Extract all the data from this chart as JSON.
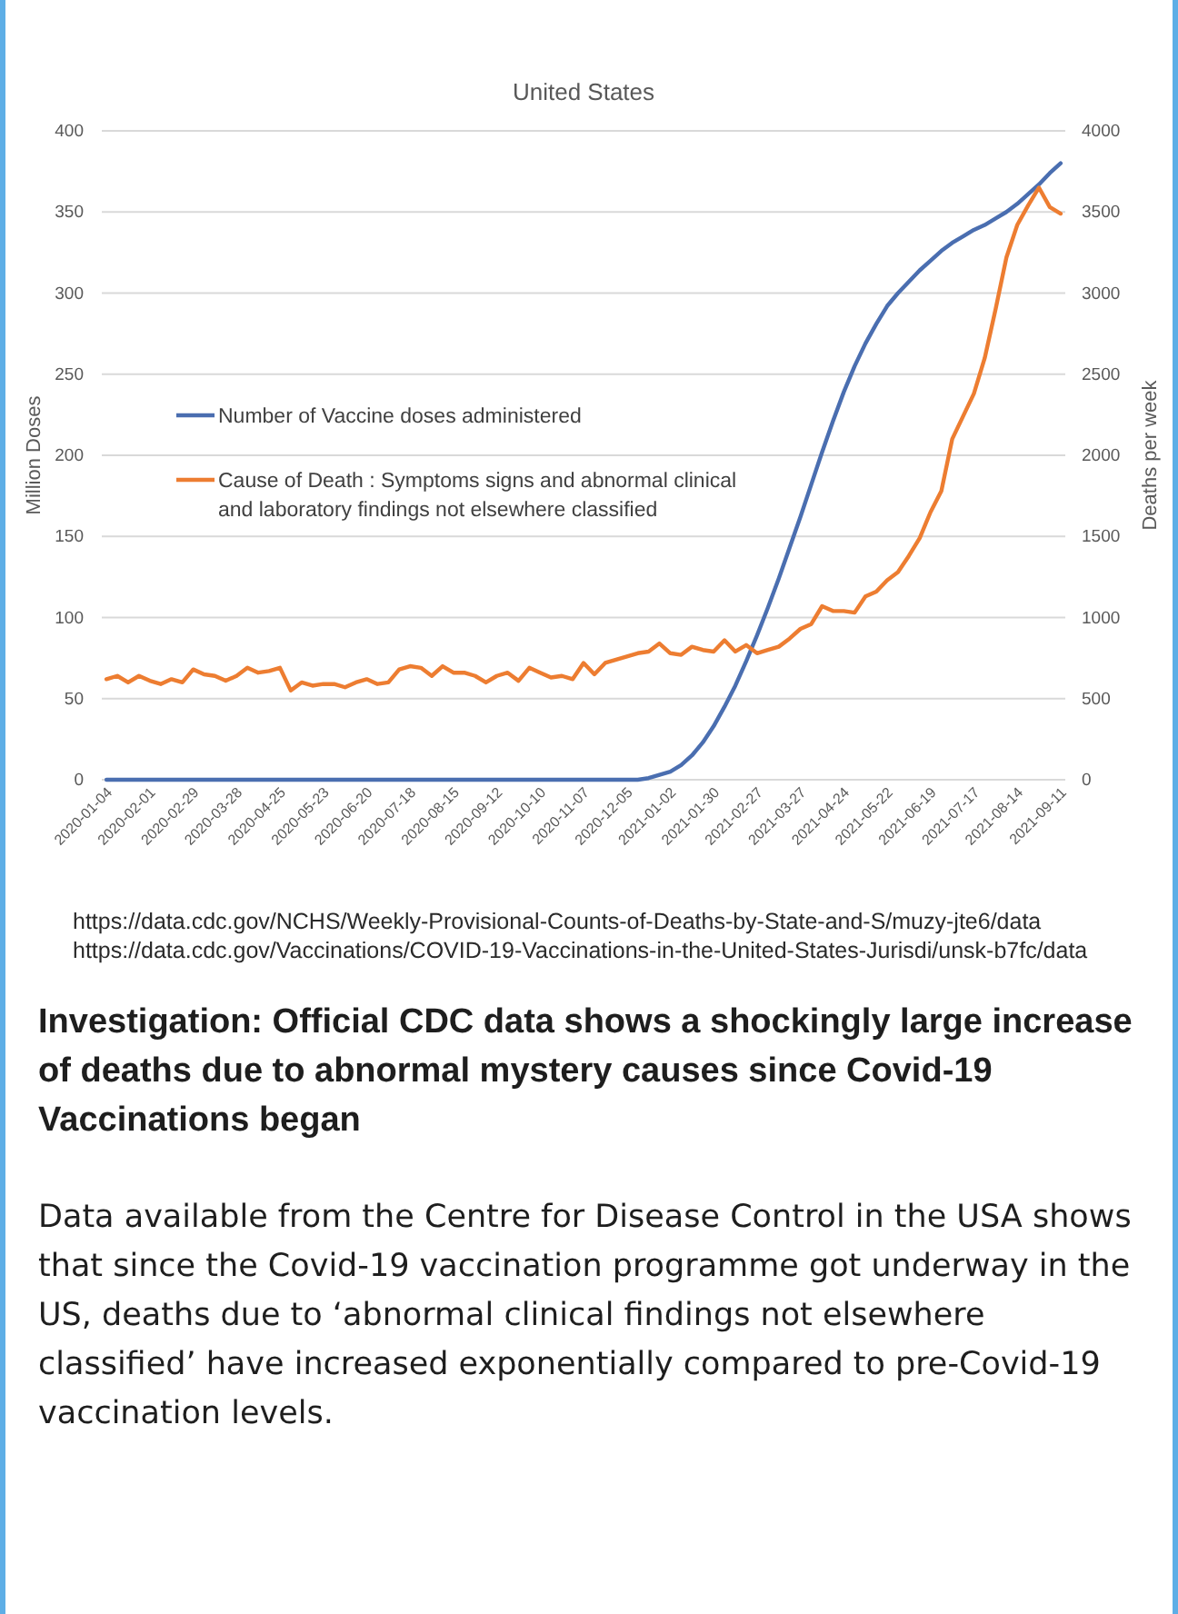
{
  "chart_data": {
    "type": "line",
    "title": "United States",
    "ylabel": "Million Doses",
    "y2label": "Deaths per week",
    "x": [
      "2020-01-04",
      "2020-01-11",
      "2020-01-18",
      "2020-01-25",
      "2020-02-01",
      "2020-02-08",
      "2020-02-15",
      "2020-02-22",
      "2020-02-29",
      "2020-03-07",
      "2020-03-14",
      "2020-03-21",
      "2020-03-28",
      "2020-04-04",
      "2020-04-11",
      "2020-04-18",
      "2020-04-25",
      "2020-05-02",
      "2020-05-09",
      "2020-05-16",
      "2020-05-23",
      "2020-05-30",
      "2020-06-06",
      "2020-06-13",
      "2020-06-20",
      "2020-06-27",
      "2020-07-04",
      "2020-07-11",
      "2020-07-18",
      "2020-07-25",
      "2020-08-01",
      "2020-08-08",
      "2020-08-15",
      "2020-08-22",
      "2020-08-29",
      "2020-09-05",
      "2020-09-12",
      "2020-09-19",
      "2020-09-26",
      "2020-10-03",
      "2020-10-10",
      "2020-10-17",
      "2020-10-24",
      "2020-10-31",
      "2020-11-07",
      "2020-11-14",
      "2020-11-21",
      "2020-11-28",
      "2020-12-05",
      "2020-12-12",
      "2020-12-19",
      "2020-12-26",
      "2021-01-02",
      "2021-01-09",
      "2021-01-16",
      "2021-01-23",
      "2021-01-30",
      "2021-02-06",
      "2021-02-13",
      "2021-02-20",
      "2021-02-27",
      "2021-03-06",
      "2021-03-13",
      "2021-03-20",
      "2021-03-27",
      "2021-04-03",
      "2021-04-10",
      "2021-04-17",
      "2021-04-24",
      "2021-05-01",
      "2021-05-08",
      "2021-05-15",
      "2021-05-22",
      "2021-05-29",
      "2021-06-05",
      "2021-06-12",
      "2021-06-19",
      "2021-06-26",
      "2021-07-03",
      "2021-07-10",
      "2021-07-17",
      "2021-07-24",
      "2021-07-31",
      "2021-08-07",
      "2021-08-14",
      "2021-08-21",
      "2021-08-28",
      "2021-09-04",
      "2021-09-11"
    ],
    "series": [
      {
        "name": "Number of Vaccine doses administered",
        "color": "#4a6eb0",
        "values": [
          0,
          0,
          0,
          0,
          0,
          0,
          0,
          0,
          0,
          0,
          0,
          0,
          0,
          0,
          0,
          0,
          0,
          0,
          0,
          0,
          0,
          0,
          0,
          0,
          0,
          0,
          0,
          0,
          0,
          0,
          0,
          0,
          0,
          0,
          0,
          0,
          0,
          0,
          0,
          0,
          0,
          0,
          0,
          0,
          0,
          0,
          0,
          0,
          0,
          0,
          1,
          3,
          5,
          9,
          15,
          23,
          33,
          45,
          58,
          73,
          89,
          106,
          124,
          143,
          162,
          182,
          202,
          221,
          239,
          255,
          269,
          281,
          292,
          300,
          307,
          314,
          320,
          326,
          331,
          335,
          339,
          342,
          346,
          350,
          355,
          361,
          367,
          374,
          380
        ]
      },
      {
        "name": "Cause of Death : Symptoms signs and abnormal clinical and laboratory findings not elsewhere classified",
        "color": "#ed7d31",
        "axis": "y2",
        "values": [
          620,
          640,
          600,
          640,
          610,
          590,
          620,
          600,
          680,
          650,
          640,
          610,
          640,
          690,
          660,
          670,
          690,
          550,
          600,
          580,
          590,
          590,
          570,
          600,
          620,
          590,
          600,
          680,
          700,
          690,
          640,
          700,
          660,
          660,
          640,
          600,
          640,
          660,
          610,
          690,
          660,
          630,
          640,
          620,
          720,
          650,
          720,
          740,
          760,
          780,
          790,
          840,
          780,
          770,
          820,
          800,
          790,
          860,
          790,
          830,
          780,
          800,
          820,
          870,
          930,
          960,
          1070,
          1040,
          1040,
          1030,
          1130,
          1160,
          1230,
          1280,
          1380,
          1490,
          1650,
          1780,
          2100,
          2240,
          2380,
          2600,
          2900,
          3220,
          3420,
          3540,
          3650,
          3530,
          3490
        ]
      }
    ],
    "xlim": [
      "2020-01-01",
      "2021-09-14"
    ],
    "xticks": [
      "2020-01-04",
      "2020-02-01",
      "2020-02-29",
      "2020-03-28",
      "2020-04-25",
      "2020-05-23",
      "2020-06-20",
      "2020-07-18",
      "2020-08-15",
      "2020-09-12",
      "2020-10-10",
      "2020-11-07",
      "2020-12-05",
      "2021-01-02",
      "2021-01-30",
      "2021-02-27",
      "2021-03-27",
      "2021-04-24",
      "2021-05-22",
      "2021-06-19",
      "2021-07-17",
      "2021-08-14",
      "2021-09-11"
    ],
    "ylim": [
      0,
      400
    ],
    "yticks": [
      0,
      50,
      100,
      150,
      200,
      250,
      300,
      350,
      400
    ],
    "y2lim": [
      0,
      4000
    ],
    "y2ticks": [
      0,
      500,
      1000,
      1500,
      2000,
      2500,
      3000,
      3500,
      4000
    ],
    "grid": "y",
    "legend": "left",
    "annotations": [
      "https://data.cdc.gov/NCHS/Weekly-Provisional-Counts-of-Deaths-by-State-and-S/muzy-jte6/data",
      "https://data.cdc.gov/Vaccinations/COVID-19-Vaccinations-in-the-United-States-Jurisdi/unsk-b7fc/data",
      "Investigation: Official CDC data shows a shockingly large increase of deaths due to abnormal mystery causes since Covid-19 Vaccinations began",
      "Data available from the Centre for Disease Control in the USA shows that since the Covid-19 vaccination programme got underway in the US, deaths due to ‘abnormal clinical findings not elsewhere classified’ have increased exponentially compared to pre-Covid-19 vaccination levels."
    ]
  }
}
